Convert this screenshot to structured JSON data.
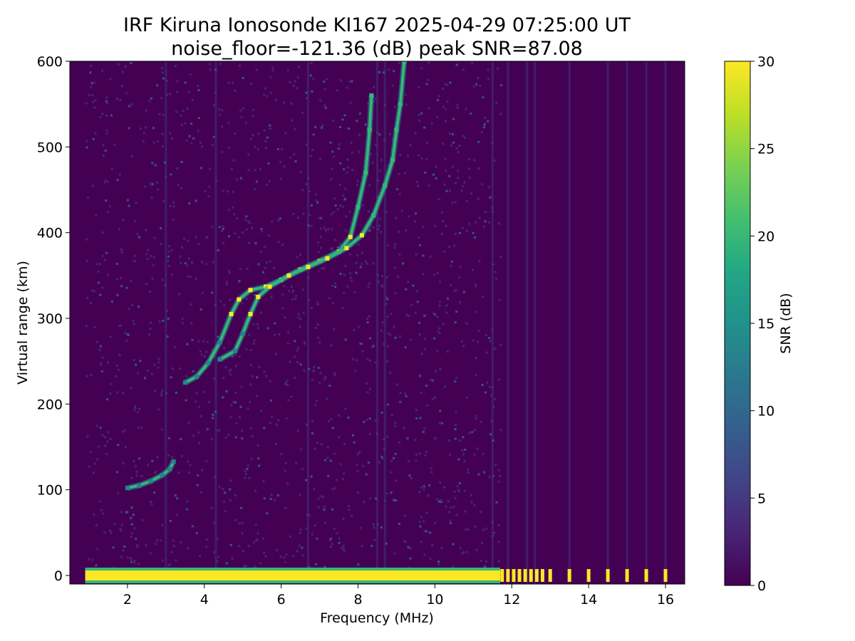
{
  "chart_data": {
    "type": "heatmap",
    "title": "IRF Kiruna Ionosonde KI167 2025-04-29 07:25:00  UT",
    "subtitle": "noise_floor=-121.36 (dB) peak SNR=87.08",
    "xlabel": "Frequency (MHz)",
    "ylabel": "Virtual range (km)",
    "xlim": [
      0.5,
      16.5
    ],
    "ylim": [
      -10,
      600
    ],
    "xticks": [
      2,
      4,
      6,
      8,
      10,
      12,
      14,
      16
    ],
    "yticks": [
      0,
      100,
      200,
      300,
      400,
      500,
      600
    ],
    "colorbar": {
      "label": "SNR (dB)",
      "range": [
        0,
        30
      ],
      "ticks": [
        0,
        5,
        10,
        15,
        20,
        25,
        30
      ],
      "colormap": "viridis"
    },
    "colors": {
      "background": "#440154",
      "noise": "#482475",
      "echo_low": "#26828e",
      "echo_mid": "#35b779",
      "echo_high": "#fde725"
    },
    "ground_echo": {
      "range_km": 0,
      "continuous_freq_mhz": [
        0.9,
        11.7
      ],
      "discrete_freqs_mhz": [
        11.75,
        11.9,
        12.05,
        12.2,
        12.35,
        12.5,
        12.65,
        12.8,
        13.0,
        13.5,
        14.0,
        14.5,
        15.0,
        15.5,
        16.0
      ]
    },
    "series": [
      {
        "layer": "E-trace",
        "points": [
          [
            2.0,
            102
          ],
          [
            2.3,
            105
          ],
          [
            2.6,
            110
          ],
          [
            2.9,
            117
          ],
          [
            3.1,
            124
          ],
          [
            3.2,
            133
          ]
        ]
      },
      {
        "layer": "F-trace-O",
        "points": [
          [
            3.5,
            225
          ],
          [
            3.8,
            232
          ],
          [
            4.1,
            248
          ],
          [
            4.4,
            272
          ],
          [
            4.7,
            305
          ],
          [
            4.9,
            322
          ],
          [
            5.2,
            333
          ],
          [
            5.6,
            337
          ],
          [
            6.0,
            345
          ],
          [
            6.5,
            357
          ],
          [
            7.0,
            367
          ],
          [
            7.5,
            378
          ],
          [
            7.8,
            395
          ],
          [
            8.0,
            430
          ],
          [
            8.2,
            470
          ],
          [
            8.3,
            520
          ],
          [
            8.35,
            560
          ]
        ]
      },
      {
        "layer": "F-trace-X",
        "points": [
          [
            4.4,
            252
          ],
          [
            4.8,
            262
          ],
          [
            5.0,
            282
          ],
          [
            5.2,
            305
          ],
          [
            5.4,
            325
          ],
          [
            5.7,
            337
          ],
          [
            6.2,
            350
          ],
          [
            6.7,
            360
          ],
          [
            7.2,
            370
          ],
          [
            7.7,
            382
          ],
          [
            8.1,
            397
          ],
          [
            8.4,
            420
          ],
          [
            8.7,
            455
          ],
          [
            8.9,
            485
          ],
          [
            9.0,
            520
          ],
          [
            9.1,
            550
          ],
          [
            9.2,
            600
          ]
        ]
      }
    ],
    "noise_columns_mhz": [
      3.0,
      4.3,
      6.7,
      8.5,
      8.7,
      11.5,
      11.9,
      12.4,
      12.6,
      13.5,
      14.5,
      15.0,
      15.5,
      16.0
    ]
  }
}
